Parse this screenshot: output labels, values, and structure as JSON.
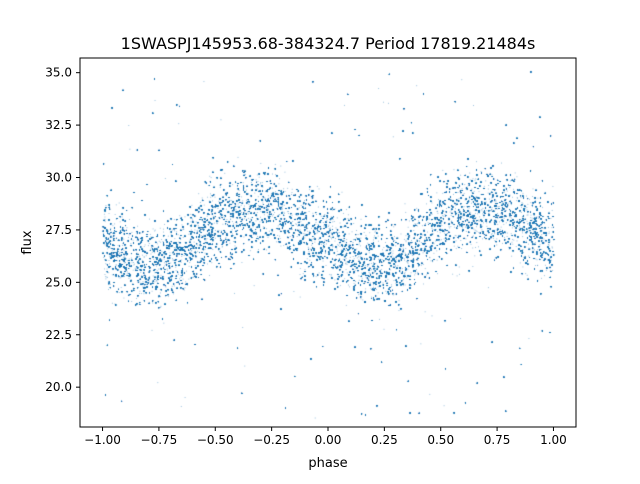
{
  "chart_data": {
    "type": "scatter",
    "title": "1SWASPJ145953.68-384324.7 Period 17819.21484s",
    "xlabel": "phase",
    "ylabel": "flux",
    "xlim": [
      -1.1,
      1.1
    ],
    "ylim": [
      18.1,
      35.7
    ],
    "x_ticks": [
      -1.0,
      -0.75,
      -0.5,
      -0.25,
      0.0,
      0.25,
      0.5,
      0.75,
      1.0
    ],
    "x_tick_labels": [
      "−1.00",
      "−0.75",
      "−0.50",
      "−0.25",
      "0.00",
      "0.25",
      "0.50",
      "0.75",
      "1.00"
    ],
    "y_ticks": [
      20.0,
      22.5,
      25.0,
      27.5,
      30.0,
      32.5,
      35.0
    ],
    "y_tick_labels": [
      "20.0",
      "22.5",
      "25.0",
      "27.5",
      "30.0",
      "32.5",
      "35.0"
    ],
    "grid": false,
    "legend": "none",
    "marker_color": "#1f77b4",
    "series": [
      {
        "x_range": [
          -1.0,
          1.0
        ],
        "description_points": [
          [
            -1.0,
            26.8
          ],
          [
            -0.9,
            26.2
          ],
          [
            -0.8,
            25.8
          ],
          [
            -0.75,
            25.9
          ],
          [
            -0.7,
            26.1
          ],
          [
            -0.6,
            26.9
          ],
          [
            -0.5,
            27.8
          ],
          [
            -0.4,
            28.3
          ],
          [
            -0.3,
            28.5
          ],
          [
            -0.25,
            28.4
          ],
          [
            -0.2,
            28.2
          ],
          [
            -0.1,
            27.5
          ],
          [
            0.0,
            26.8
          ],
          [
            0.1,
            26.2
          ],
          [
            0.2,
            25.8
          ],
          [
            0.25,
            25.9
          ],
          [
            0.3,
            26.1
          ],
          [
            0.4,
            26.9
          ],
          [
            0.5,
            27.8
          ],
          [
            0.6,
            28.3
          ],
          [
            0.7,
            28.5
          ],
          [
            0.75,
            28.4
          ],
          [
            0.8,
            28.2
          ],
          [
            0.9,
            27.5
          ],
          [
            1.0,
            26.8
          ]
        ],
        "band_half_width": 1.8,
        "outlier_range": [
          18.5,
          35.1
        ]
      }
    ]
  }
}
